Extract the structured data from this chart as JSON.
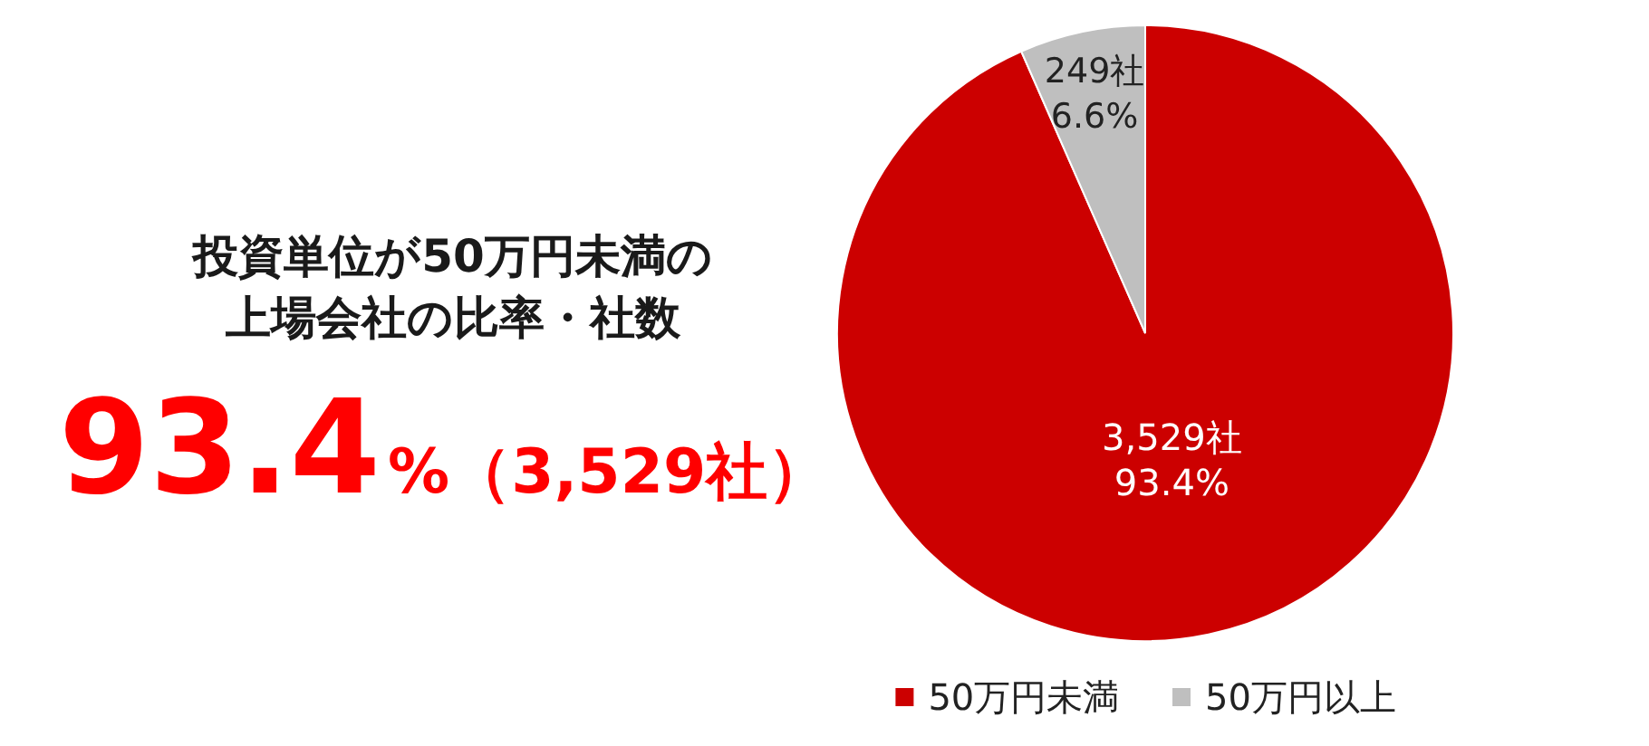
{
  "chart_data": {
    "type": "pie",
    "title": "投資単位が50万円未満の上場会社の比率・社数",
    "categories": [
      "50万円未満",
      "50万円以上"
    ],
    "values": [
      3529,
      249
    ],
    "colors": [
      "#cc0000",
      "#bfbfbf"
    ],
    "value_labels": [
      "3,529社\n93.4%",
      "249社\n6.6%"
    ],
    "annotations": [
      "93.4%（3,529社）"
    ],
    "legend": "bottom"
  }
}
